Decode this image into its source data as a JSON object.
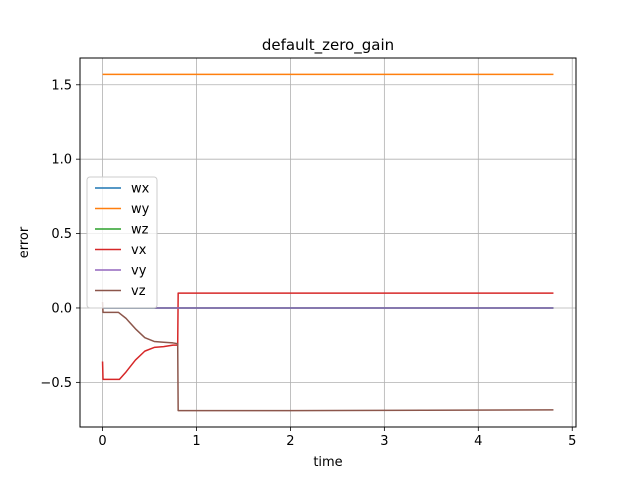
{
  "chart_data": {
    "type": "line",
    "title": "default_zero_gain",
    "xlabel": "time",
    "ylabel": "error",
    "xlim": [
      -0.24,
      5.04
    ],
    "ylim": [
      -0.8,
      1.68
    ],
    "xticks": [
      0,
      1,
      2,
      3,
      4,
      5
    ],
    "yticks": [
      -0.5,
      0.0,
      0.5,
      1.0,
      1.5
    ],
    "ytick_labels": [
      "−0.5",
      "0.0",
      "0.5",
      "1.0",
      "1.5"
    ],
    "grid": true,
    "legend_position": "center-left",
    "series": [
      {
        "name": "wx",
        "color": "#1f77b4",
        "x": [
          0,
          4.8
        ],
        "y": [
          0.0,
          0.0
        ]
      },
      {
        "name": "wy",
        "color": "#ff7f0e",
        "x": [
          0,
          4.8
        ],
        "y": [
          1.57,
          1.57
        ]
      },
      {
        "name": "wz",
        "color": "#2ca02c",
        "x": [
          0,
          4.8
        ],
        "y": [
          0.0,
          0.0
        ]
      },
      {
        "name": "vx",
        "color": "#d62728",
        "x": [
          0,
          0.005,
          0.18,
          0.25,
          0.35,
          0.45,
          0.55,
          0.65,
          0.75,
          0.8,
          0.805,
          2.0,
          4.8
        ],
        "y": [
          -0.36,
          -0.48,
          -0.48,
          -0.43,
          -0.35,
          -0.29,
          -0.265,
          -0.26,
          -0.25,
          -0.25,
          0.1,
          0.1,
          0.1
        ]
      },
      {
        "name": "vy",
        "color": "#9467bd",
        "x": [
          0,
          4.8
        ],
        "y": [
          0.0,
          0.0
        ]
      },
      {
        "name": "vz",
        "color": "#8c564b",
        "x": [
          0,
          0.005,
          0.02,
          0.17,
          0.25,
          0.35,
          0.45,
          0.55,
          0.65,
          0.75,
          0.8,
          0.805,
          2.0,
          4.8
        ],
        "y": [
          0.04,
          -0.03,
          -0.03,
          -0.03,
          -0.07,
          -0.14,
          -0.2,
          -0.225,
          -0.23,
          -0.235,
          -0.24,
          -0.69,
          -0.69,
          -0.685
        ]
      }
    ]
  }
}
